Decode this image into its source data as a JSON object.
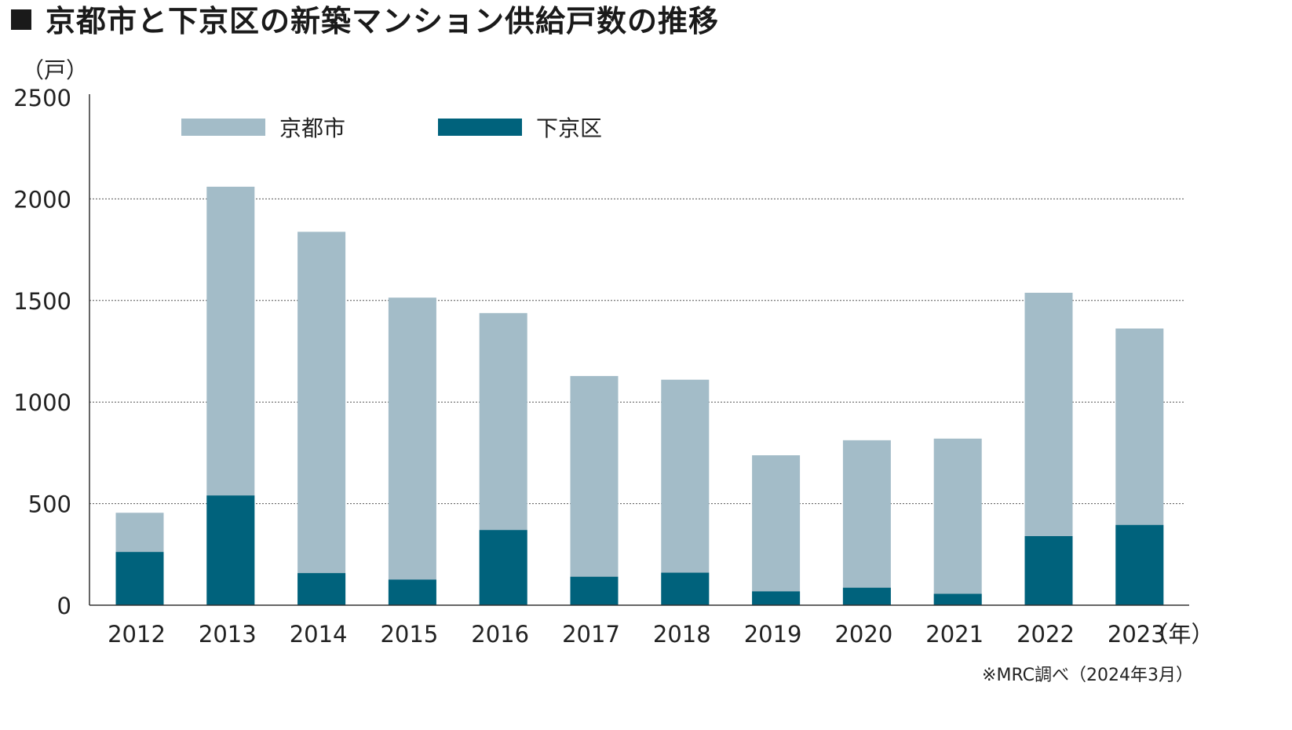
{
  "title": "京都市と下京区の新築マンション供給戸数の推移",
  "source_note": "※MRC調べ（2024年3月）",
  "chart_data": {
    "type": "bar",
    "stacking": "overlay",
    "ylabel": "（戸）",
    "xlabel": "（年）",
    "ylim": [
      0,
      2500
    ],
    "yticks": [
      "0",
      "500",
      "1000",
      "1500",
      "2000",
      "2500"
    ],
    "grid": true,
    "legend": "top-left",
    "categories": [
      "2012",
      "2013",
      "2014",
      "2015",
      "2016",
      "2017",
      "2018",
      "2019",
      "2020",
      "2021",
      "2022",
      "2023"
    ],
    "series": [
      {
        "name": "京都市",
        "color": "#a3bcc8",
        "values": [
          455,
          2060,
          1838,
          1514,
          1438,
          1128,
          1110,
          738,
          812,
          820,
          1538,
          1362
        ]
      },
      {
        "name": "下京区",
        "color": "#00627c",
        "values": [
          262,
          540,
          158,
          126,
          370,
          140,
          160,
          68,
          86,
          56,
          340,
          395
        ]
      }
    ]
  }
}
